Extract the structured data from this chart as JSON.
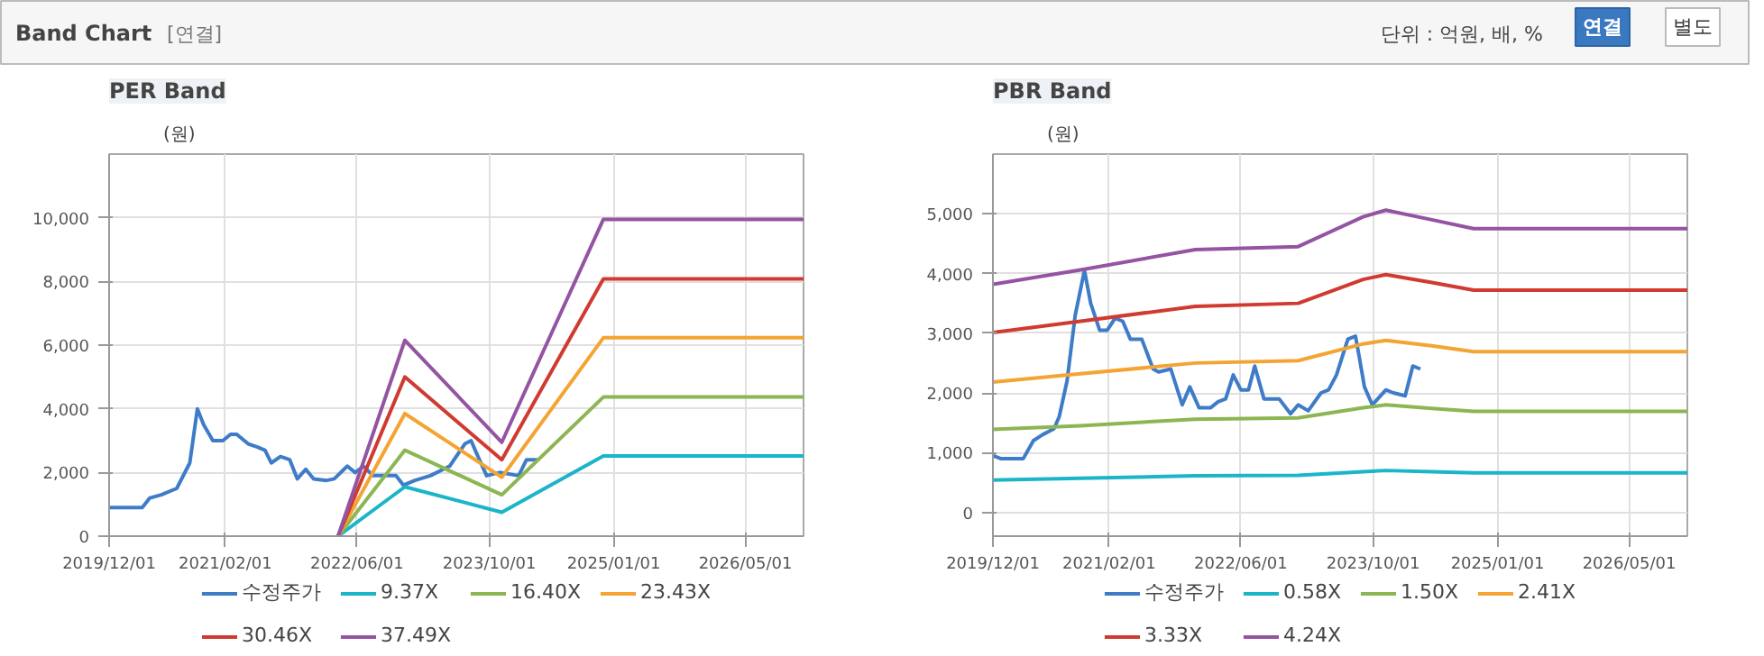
{
  "chart_data": [
    {
      "type": "other",
      "title": "Band Chart",
      "annotations": [
        "[연결]",
        "단위 : 억원, 배, %",
        "연결",
        "별도"
      ]
    },
    {
      "type": "line",
      "title": "PER Band",
      "ylabel": "(원)",
      "grid": true,
      "legend": "bottom",
      "line_style": "solid",
      "xlim": [
        "2019-12-01",
        "2026-12-01"
      ],
      "xticks": [
        {
          "value": "2019-12-01",
          "label": "2019/12/01"
        },
        {
          "value": "2021-02-01",
          "label": "2021/02/01"
        },
        {
          "value": "2022-06-01",
          "label": "2022/06/01"
        },
        {
          "value": "2023-10-01",
          "label": "2023/10/01"
        },
        {
          "value": "2025-01-01",
          "label": "2025/01/01"
        },
        {
          "value": "2026-05-01",
          "label": "2026/05/01"
        }
      ],
      "ylim": [
        0,
        12000
      ],
      "yticks": [
        0,
        {
          "value": 2000,
          "label": "2,000"
        },
        {
          "value": 4000,
          "label": "4,000"
        },
        {
          "value": 6000,
          "label": "6,000"
        },
        {
          "value": 8000,
          "label": "8,000"
        },
        {
          "value": 10000,
          "label": "10,000"
        }
      ],
      "series": [
        {
          "name": "수정주가",
          "color": "#3f7cc8",
          "x": [
            "2019-12-01",
            "2020-04-01",
            "2020-04-29",
            "2020-06-10",
            "2020-08-06",
            "2020-09-23",
            "2020-10-21",
            "2020-11-13",
            "2020-12-17",
            "2021-01-23",
            "2021-02-20",
            "2021-03-15",
            "2021-04-26",
            "2021-05-30",
            "2021-06-27",
            "2021-07-20",
            "2021-08-23",
            "2021-09-26",
            "2021-10-24",
            "2021-11-24",
            "2021-12-23",
            "2022-02-09",
            "2022-03-09",
            "2022-04-26",
            "2022-05-25",
            "2022-06-25",
            "2022-07-29",
            "2022-10-22",
            "2022-11-19",
            "2022-12-31",
            "2023-02-26",
            "2023-05-08",
            "2023-07-03",
            "2023-07-26",
            "2023-08-15",
            "2023-09-21",
            "2023-11-08",
            "2024-01-17",
            "2024-02-15",
            "2024-03-28"
          ],
          "values": [
            900,
            900,
            1200,
            1300,
            1500,
            2300,
            4000,
            3500,
            3000,
            3000,
            3200,
            3200,
            2900,
            2800,
            2700,
            2300,
            2500,
            2400,
            1800,
            2100,
            1800,
            1750,
            1800,
            2200,
            2000,
            2200,
            1900,
            1900,
            1600,
            1750,
            1900,
            2200,
            2900,
            3000,
            2600,
            1900,
            2000,
            1900,
            2400,
            2400
          ]
        },
        {
          "name": "9.37X",
          "color": "#1bb5c9",
          "x": [
            "2022-03-23",
            "2022-11-24",
            "2023-11-16",
            "2024-11-24",
            "2026-12-01"
          ],
          "values": [
            0,
            1550,
            750,
            2520,
            2520
          ]
        },
        {
          "name": "16.40X",
          "color": "#8cb653",
          "x": [
            "2022-03-23",
            "2022-11-24",
            "2023-11-16",
            "2024-11-24",
            "2026-12-01"
          ],
          "values": [
            0,
            2700,
            1300,
            4370,
            4370
          ]
        },
        {
          "name": "23.43X",
          "color": "#f4a432",
          "x": [
            "2022-03-23",
            "2022-11-24",
            "2023-11-16",
            "2024-11-24",
            "2026-12-01"
          ],
          "values": [
            0,
            3850,
            1850,
            6230,
            6230
          ]
        },
        {
          "name": "30.46X",
          "color": "#d03a30",
          "x": [
            "2022-03-23",
            "2022-11-24",
            "2023-11-16",
            "2024-11-24",
            "2026-12-01"
          ],
          "values": [
            0,
            5000,
            2400,
            8080,
            8080
          ]
        },
        {
          "name": "37.49X",
          "color": "#9454a2",
          "x": [
            "2022-03-23",
            "2022-11-24",
            "2023-11-16",
            "2024-11-24",
            "2026-12-01"
          ],
          "values": [
            0,
            6150,
            2950,
            9950,
            9950
          ]
        }
      ]
    },
    {
      "type": "line",
      "title": "PBR Band",
      "ylabel": "(원)",
      "grid": true,
      "legend": "bottom",
      "line_style": "solid",
      "xlim": [
        "2019-12-01",
        "2026-12-01"
      ],
      "xticks": [
        {
          "value": "2019-12-01",
          "label": "2019/12/01"
        },
        {
          "value": "2021-02-01",
          "label": "2021/02/01"
        },
        {
          "value": "2022-06-01",
          "label": "2022/06/01"
        },
        {
          "value": "2023-10-01",
          "label": "2023/10/01"
        },
        {
          "value": "2025-01-01",
          "label": "2025/01/01"
        },
        {
          "value": "2026-05-01",
          "label": "2026/05/01"
        }
      ],
      "ylim": [
        -400,
        6000
      ],
      "yticks": [
        0,
        {
          "value": 1000,
          "label": "1,000"
        },
        {
          "value": 2000,
          "label": "2,000"
        },
        {
          "value": 3000,
          "label": "3,000"
        },
        {
          "value": 4000,
          "label": "4,000"
        },
        {
          "value": 5000,
          "label": "5,000"
        }
      ],
      "series": [
        {
          "name": "수정주가",
          "color": "#3f7cc8",
          "x": [
            "2019-12-01",
            "2019-12-29",
            "2020-03-22",
            "2020-04-28",
            "2020-06-01",
            "2020-07-13",
            "2020-08-01",
            "2020-08-30",
            "2020-09-29",
            "2020-11-02",
            "2020-11-25",
            "2020-12-28",
            "2021-01-25",
            "2021-02-23",
            "2021-03-23",
            "2021-04-20",
            "2021-06-01",
            "2021-07-13",
            "2021-08-02",
            "2021-09-16",
            "2021-10-28",
            "2021-11-25",
            "2021-12-29",
            "2022-02-09",
            "2022-03-09",
            "2022-04-06",
            "2022-05-04",
            "2022-06-01",
            "2022-06-29",
            "2022-07-22",
            "2022-08-25",
            "2022-10-20",
            "2022-12-01",
            "2022-12-29",
            "2023-02-04",
            "2023-03-23",
            "2023-04-20",
            "2023-05-19",
            "2023-06-30",
            "2023-07-28",
            "2023-08-11",
            "2023-08-30",
            "2023-09-28",
            "2023-11-17",
            "2023-12-15",
            "2024-01-27",
            "2024-02-24",
            "2024-03-23"
          ],
          "values": [
            950,
            900,
            900,
            1200,
            1300,
            1400,
            1600,
            2200,
            3300,
            4050,
            3500,
            3050,
            3050,
            3250,
            3200,
            2900,
            2900,
            2400,
            2350,
            2400,
            1800,
            2100,
            1750,
            1750,
            1850,
            1900,
            2300,
            2050,
            2050,
            2450,
            1900,
            1900,
            1650,
            1800,
            1700,
            2000,
            2050,
            2300,
            2900,
            2950,
            2600,
            2100,
            1800,
            2050,
            2000,
            1950,
            2450,
            2400
          ]
        },
        {
          "name": "0.58X",
          "color": "#1bb5c9",
          "x": [
            "2019-12-01",
            "2020-10-19",
            "2021-12-15",
            "2022-12-29",
            "2023-08-25",
            "2023-11-17",
            "2024-05-04",
            "2024-10-05",
            "2026-12-01"
          ],
          "values": [
            540,
            570,
            610,
            620,
            680,
            700,
            680,
            660,
            660
          ]
        },
        {
          "name": "1.50X",
          "color": "#8cb653",
          "x": [
            "2019-12-01",
            "2020-10-19",
            "2021-12-15",
            "2022-12-29",
            "2023-08-25",
            "2023-11-17",
            "2024-05-04",
            "2024-10-05",
            "2026-12-01"
          ],
          "values": [
            1390,
            1450,
            1560,
            1580,
            1750,
            1800,
            1740,
            1690,
            1690
          ]
        },
        {
          "name": "2.41X",
          "color": "#f4a432",
          "x": [
            "2019-12-01",
            "2020-10-19",
            "2021-12-15",
            "2022-12-29",
            "2023-08-25",
            "2023-11-17",
            "2024-05-04",
            "2024-10-05",
            "2026-12-01"
          ],
          "values": [
            2180,
            2320,
            2500,
            2540,
            2820,
            2880,
            2790,
            2690,
            2690
          ]
        },
        {
          "name": "3.33X",
          "color": "#d03a30",
          "x": [
            "2019-12-01",
            "2020-10-19",
            "2021-12-15",
            "2022-12-29",
            "2023-08-25",
            "2023-11-17",
            "2024-05-04",
            "2024-10-05",
            "2026-12-01"
          ],
          "values": [
            3010,
            3200,
            3450,
            3500,
            3900,
            3980,
            3850,
            3720,
            3720
          ]
        },
        {
          "name": "4.24X",
          "color": "#9454a2",
          "x": [
            "2019-12-01",
            "2020-10-19",
            "2021-12-15",
            "2022-12-29",
            "2023-08-25",
            "2023-11-17",
            "2024-05-04",
            "2024-10-05",
            "2026-12-01"
          ],
          "values": [
            3820,
            4060,
            4400,
            4450,
            4950,
            5060,
            4900,
            4750,
            4750
          ]
        }
      ]
    }
  ]
}
